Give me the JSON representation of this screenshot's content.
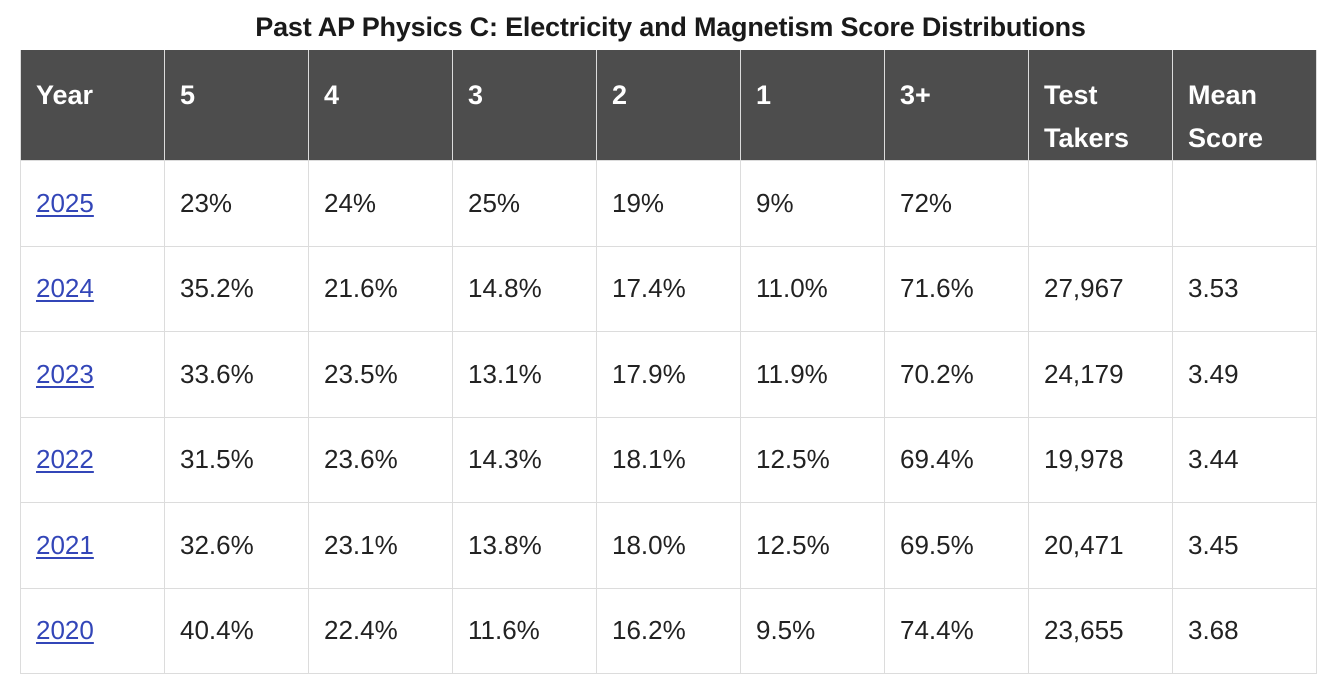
{
  "title": "Past AP Physics C: Electricity and Magnetism Score Distributions",
  "colors": {
    "header_background": "#4d4d4d",
    "header_text": "#ffffff",
    "link": "#3346b8",
    "grid_lines": "#dcdcdc"
  },
  "table": {
    "headers": [
      "Year",
      "5",
      "4",
      "3",
      "2",
      "1",
      "3+",
      "Test Takers",
      "Mean Score"
    ],
    "rows": [
      {
        "year": "2025",
        "s5": "23%",
        "s4": "24%",
        "s3": "25%",
        "s2": "19%",
        "s1": "9%",
        "s3plus": "72%",
        "test_takers": "",
        "mean": ""
      },
      {
        "year": "2024",
        "s5": "35.2%",
        "s4": "21.6%",
        "s3": "14.8%",
        "s2": "17.4%",
        "s1": "11.0%",
        "s3plus": "71.6%",
        "test_takers": "27,967",
        "mean": "3.53"
      },
      {
        "year": "2023",
        "s5": "33.6%",
        "s4": "23.5%",
        "s3": "13.1%",
        "s2": "17.9%",
        "s1": "11.9%",
        "s3plus": "70.2%",
        "test_takers": "24,179",
        "mean": "3.49"
      },
      {
        "year": "2022",
        "s5": "31.5%",
        "s4": "23.6%",
        "s3": "14.3%",
        "s2": "18.1%",
        "s1": "12.5%",
        "s3plus": "69.4%",
        "test_takers": "19,978",
        "mean": "3.44"
      },
      {
        "year": "2021",
        "s5": "32.6%",
        "s4": "23.1%",
        "s3": "13.8%",
        "s2": "18.0%",
        "s1": "12.5%",
        "s3plus": "69.5%",
        "test_takers": "20,471",
        "mean": "3.45"
      },
      {
        "year": "2020",
        "s5": "40.4%",
        "s4": "22.4%",
        "s3": "11.6%",
        "s2": "16.2%",
        "s1": "9.5%",
        "s3plus": "74.4%",
        "test_takers": "23,655",
        "mean": "3.68"
      }
    ]
  }
}
